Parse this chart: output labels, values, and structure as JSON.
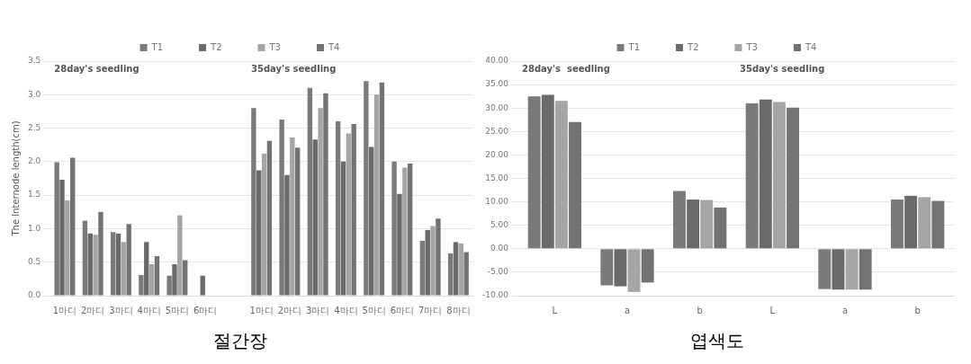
{
  "chart_data": [
    {
      "type": "bar",
      "title": "절간장",
      "ylabel": "The Internode length(cm)",
      "annotations": [
        "28day's seedling",
        "35day's seedling"
      ],
      "categories": [
        "1마디",
        "2마디",
        "3마디",
        "4마디",
        "5마디",
        "6마디",
        null,
        "1마디",
        "2마디",
        "3마디",
        "4마디",
        "5마디",
        "6마디",
        "7마디",
        "8마디"
      ],
      "series": [
        {
          "name": "T1",
          "color": "#7a7a7a",
          "values": [
            1.99,
            1.12,
            0.95,
            0.31,
            0.3,
            null,
            null,
            2.8,
            2.63,
            3.1,
            2.6,
            3.2,
            2.0,
            0.82,
            0.63
          ]
        },
        {
          "name": "T2",
          "color": "#6a6a6a",
          "values": [
            1.73,
            0.93,
            0.93,
            0.8,
            0.47,
            0.3,
            null,
            1.87,
            1.8,
            2.33,
            2.0,
            2.22,
            1.52,
            0.98,
            0.8
          ]
        },
        {
          "name": "T3",
          "color": "#a5a5a5",
          "values": [
            1.42,
            0.91,
            0.8,
            0.47,
            1.2,
            null,
            null,
            2.12,
            2.36,
            2.8,
            2.42,
            3.0,
            1.91,
            1.04,
            0.78
          ]
        },
        {
          "name": "T4",
          "color": "#737373",
          "values": [
            2.06,
            1.25,
            1.07,
            0.59,
            0.53,
            null,
            null,
            2.31,
            2.21,
            3.02,
            2.56,
            3.18,
            1.97,
            1.15,
            0.65
          ]
        }
      ],
      "ylim": [
        0,
        3.5
      ],
      "yticks": [
        {
          "value": 0,
          "label": "0.0"
        },
        0.5,
        {
          "value": 1,
          "label": "1.0"
        },
        1.5,
        {
          "value": 2,
          "label": "2.0"
        },
        2.5,
        {
          "value": 3,
          "label": "3.0"
        },
        3.5
      ],
      "grid": "y",
      "legend": "top"
    },
    {
      "type": "bar",
      "title": "엽색도",
      "annotations": [
        "28day's  seedling",
        "35day's seedling"
      ],
      "categories": [
        "L",
        "a",
        "b",
        "L",
        "a",
        "b"
      ],
      "series": [
        {
          "name": "T1",
          "color": "#7a7a7a",
          "values": [
            32.5,
            -7.8,
            12.3,
            31.0,
            -8.6,
            10.5
          ]
        },
        {
          "name": "T2",
          "color": "#6a6a6a",
          "values": [
            32.8,
            -8.0,
            10.5,
            31.8,
            -8.7,
            11.3
          ]
        },
        {
          "name": "T3",
          "color": "#a5a5a5",
          "values": [
            31.5,
            -9.2,
            10.4,
            31.3,
            -8.7,
            11.0
          ]
        },
        {
          "name": "T4",
          "color": "#737373",
          "values": [
            27.0,
            -7.2,
            8.8,
            30.1,
            -8.7,
            10.2
          ]
        }
      ],
      "ylim": [
        -10,
        40
      ],
      "yticks": [
        {
          "value": -10,
          "label": "-10.00"
        },
        {
          "value": -5,
          "label": "-5.00"
        },
        {
          "value": 0,
          "label": "0.00"
        },
        {
          "value": 5,
          "label": "5.00"
        },
        {
          "value": 10,
          "label": "10.00"
        },
        {
          "value": 15,
          "label": "15.00"
        },
        {
          "value": 20,
          "label": "20.00"
        },
        {
          "value": 25,
          "label": "25.00"
        },
        {
          "value": 30,
          "label": "30.00"
        },
        {
          "value": 35,
          "label": "35.00"
        },
        {
          "value": 40,
          "label": "40.00"
        }
      ],
      "grid": "y",
      "legend": "top"
    }
  ]
}
